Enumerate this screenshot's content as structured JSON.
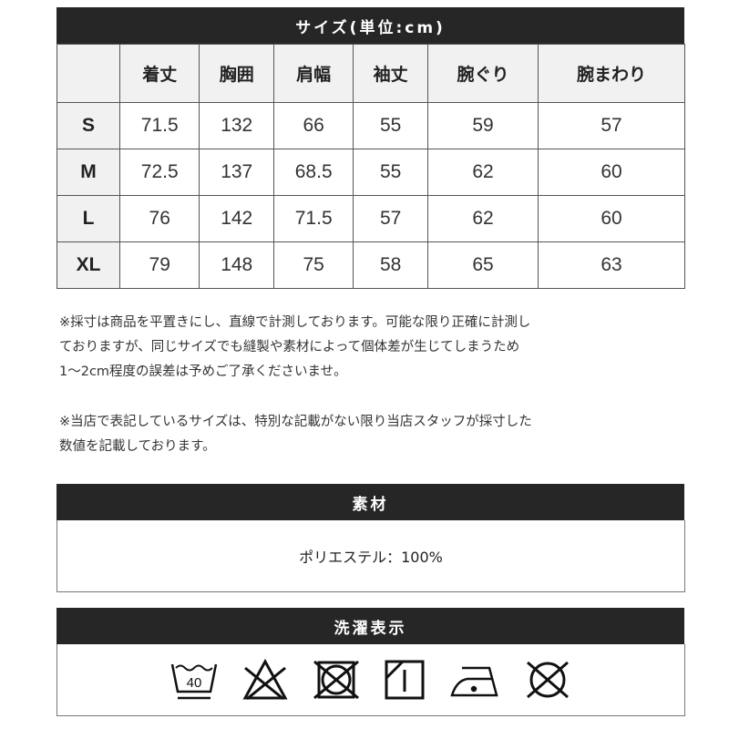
{
  "size_table": {
    "title": "サイズ(単位:cm)",
    "columns": [
      "着丈",
      "胸囲",
      "肩幅",
      "袖丈",
      "腕ぐり",
      "腕まわり"
    ],
    "rows": [
      {
        "size": "S",
        "values": [
          "71.5",
          "132",
          "66",
          "55",
          "59",
          "57"
        ]
      },
      {
        "size": "M",
        "values": [
          "72.5",
          "137",
          "68.5",
          "55",
          "62",
          "60"
        ]
      },
      {
        "size": "L",
        "values": [
          "76",
          "142",
          "71.5",
          "57",
          "62",
          "60"
        ]
      },
      {
        "size": "XL",
        "values": [
          "79",
          "148",
          "75",
          "58",
          "65",
          "63"
        ]
      }
    ]
  },
  "notes": [
    [
      "※採寸は商品を平置きにし、直線で計測しております。可能な限り正確に計測し",
      "ておりますが、同じサイズでも縫製や素材によって個体差が生じてしまうため",
      "1～2cm程度の誤差は予めご了承くださいませ。"
    ],
    [
      "※当店で表記しているサイズは、特別な記載がない限り当店スタッフが採寸した",
      "数値を記載しております。"
    ]
  ],
  "material": {
    "title": "素材",
    "value": "ポリエステル：100%"
  },
  "care": {
    "title": "洗濯表示",
    "wash_temp": "40",
    "icons": [
      "wash-40-gentle-icon",
      "no-bleach-icon",
      "no-tumble-dry-icon",
      "line-dry-shade-icon",
      "iron-low-icon",
      "no-dry-clean-icon"
    ]
  }
}
